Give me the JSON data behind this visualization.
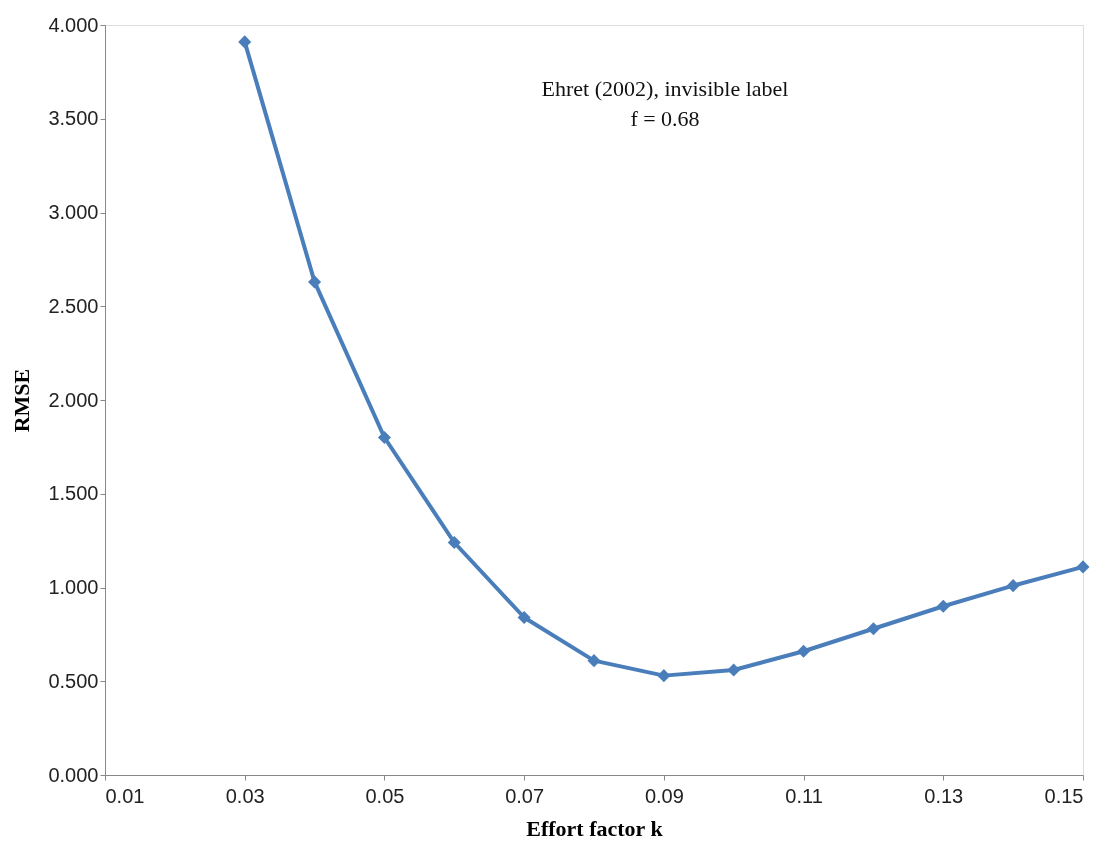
{
  "chart_data": {
    "type": "line",
    "xlabel": "Effort factor k",
    "ylabel": "RMSE",
    "annotations": [
      "Ehret (2002), invisible label",
      "f = 0.68"
    ],
    "x": [
      0.03,
      0.04,
      0.05,
      0.06,
      0.07,
      0.08,
      0.09,
      0.1,
      0.11,
      0.12,
      0.13,
      0.14,
      0.15
    ],
    "series": [
      {
        "color": "#4a7ebb",
        "values": [
          3.91,
          2.63,
          1.8,
          1.24,
          0.84,
          0.61,
          0.53,
          0.56,
          0.66,
          0.78,
          0.9,
          1.01,
          1.11
        ]
      }
    ],
    "xlim": [
      0.01,
      0.15
    ],
    "xticks": [
      0.01,
      0.03,
      0.05,
      0.07,
      0.09,
      0.11,
      0.13,
      0.15
    ],
    "ylim": [
      0,
      4
    ],
    "yticks": [
      {
        "value": 0,
        "label": "0.000"
      },
      {
        "value": 0.5,
        "label": "0.500"
      },
      {
        "value": 1,
        "label": "1.000"
      },
      {
        "value": 1.5,
        "label": "1.500"
      },
      {
        "value": 2,
        "label": "2.000"
      },
      {
        "value": 2.5,
        "label": "2.500"
      },
      {
        "value": 3,
        "label": "3.000"
      },
      {
        "value": 3.5,
        "label": "3.500"
      },
      {
        "value": 4,
        "label": "4.000"
      }
    ],
    "grid": false,
    "marker": "diamond",
    "line_style": "solid"
  }
}
